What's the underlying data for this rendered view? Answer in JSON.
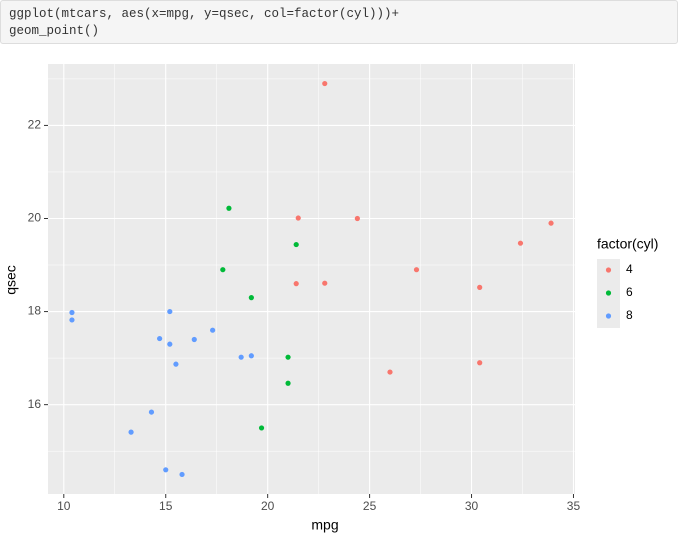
{
  "code": [
    "ggplot(mtcars, aes(x=mpg, y=qsec, col=factor(cyl)))+",
    "geom_point()"
  ],
  "chart_data": {
    "type": "scatter",
    "x_label": "mpg",
    "y_label": "qsec",
    "legend_title": "factor(cyl)",
    "xlim": [
      9.225,
      35.075
    ],
    "ylim": [
      14.08,
      23.32
    ],
    "xticks": [
      10,
      15,
      20,
      25,
      30,
      35
    ],
    "yticks": [
      16,
      18,
      20,
      22
    ],
    "x_minor_ticks": [
      12.5,
      17.5,
      22.5,
      27.5,
      32.5
    ],
    "y_minor_ticks": [
      15,
      17,
      19,
      21,
      23
    ],
    "grid": true,
    "legend": "right",
    "series": [
      {
        "name": "4",
        "color": "#F8766D",
        "x": [
          22.8,
          24.4,
          22.8,
          32.4,
          30.4,
          33.9,
          21.5,
          27.3,
          26.0,
          30.4,
          21.4
        ],
        "values": [
          18.61,
          20.0,
          22.9,
          19.47,
          18.52,
          19.9,
          20.01,
          18.9,
          16.7,
          16.9,
          18.6
        ]
      },
      {
        "name": "6",
        "color": "#00BA38",
        "x": [
          21.0,
          21.0,
          21.4,
          18.1,
          19.2,
          17.8,
          19.7
        ],
        "values": [
          16.46,
          17.02,
          19.44,
          20.22,
          18.3,
          18.9,
          15.5
        ]
      },
      {
        "name": "8",
        "color": "#619CFF",
        "x": [
          18.7,
          14.3,
          16.4,
          17.3,
          15.2,
          10.4,
          10.4,
          14.7,
          15.5,
          15.2,
          13.3,
          19.2,
          15.8,
          15.0
        ],
        "values": [
          17.02,
          15.84,
          17.4,
          17.6,
          18.0,
          17.98,
          17.82,
          17.42,
          16.87,
          17.3,
          15.41,
          17.05,
          14.5,
          14.6
        ]
      }
    ]
  }
}
